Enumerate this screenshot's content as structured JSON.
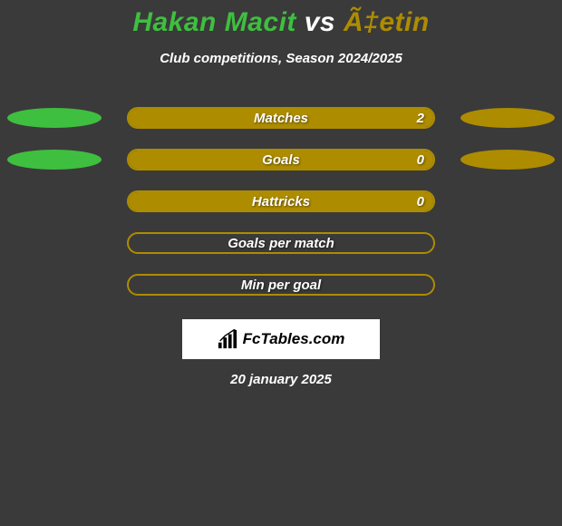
{
  "title": {
    "player1": "Hakan Macit",
    "vs": "vs",
    "player2": "Ã‡etin",
    "player1_color": "#3fbf3f",
    "player2_color": "#ae8c00",
    "vs_color": "#ffffff",
    "fontsize": 30
  },
  "subtitle": "Club competitions, Season 2024/2025",
  "background_color": "#3a3a3a",
  "bar_border_color": "#ae8c00",
  "bar_fill_color": "#ae8c00",
  "oval_left_color": "#3fbf3f",
  "oval_right_color": "#ae8c00",
  "stats": [
    {
      "label": "Matches",
      "value_left": null,
      "value_right": "2",
      "fill_pct": 100,
      "show_left_oval": true,
      "show_right_oval": true
    },
    {
      "label": "Goals",
      "value_left": null,
      "value_right": "0",
      "fill_pct": 100,
      "show_left_oval": true,
      "show_right_oval": true
    },
    {
      "label": "Hattricks",
      "value_left": null,
      "value_right": "0",
      "fill_pct": 100,
      "show_left_oval": false,
      "show_right_oval": false
    },
    {
      "label": "Goals per match",
      "value_left": null,
      "value_right": null,
      "fill_pct": 0,
      "show_left_oval": false,
      "show_right_oval": false
    },
    {
      "label": "Min per goal",
      "value_left": null,
      "value_right": null,
      "fill_pct": 0,
      "show_left_oval": false,
      "show_right_oval": false
    }
  ],
  "logo_text": "FcTables.com",
  "date": "20 january 2025"
}
